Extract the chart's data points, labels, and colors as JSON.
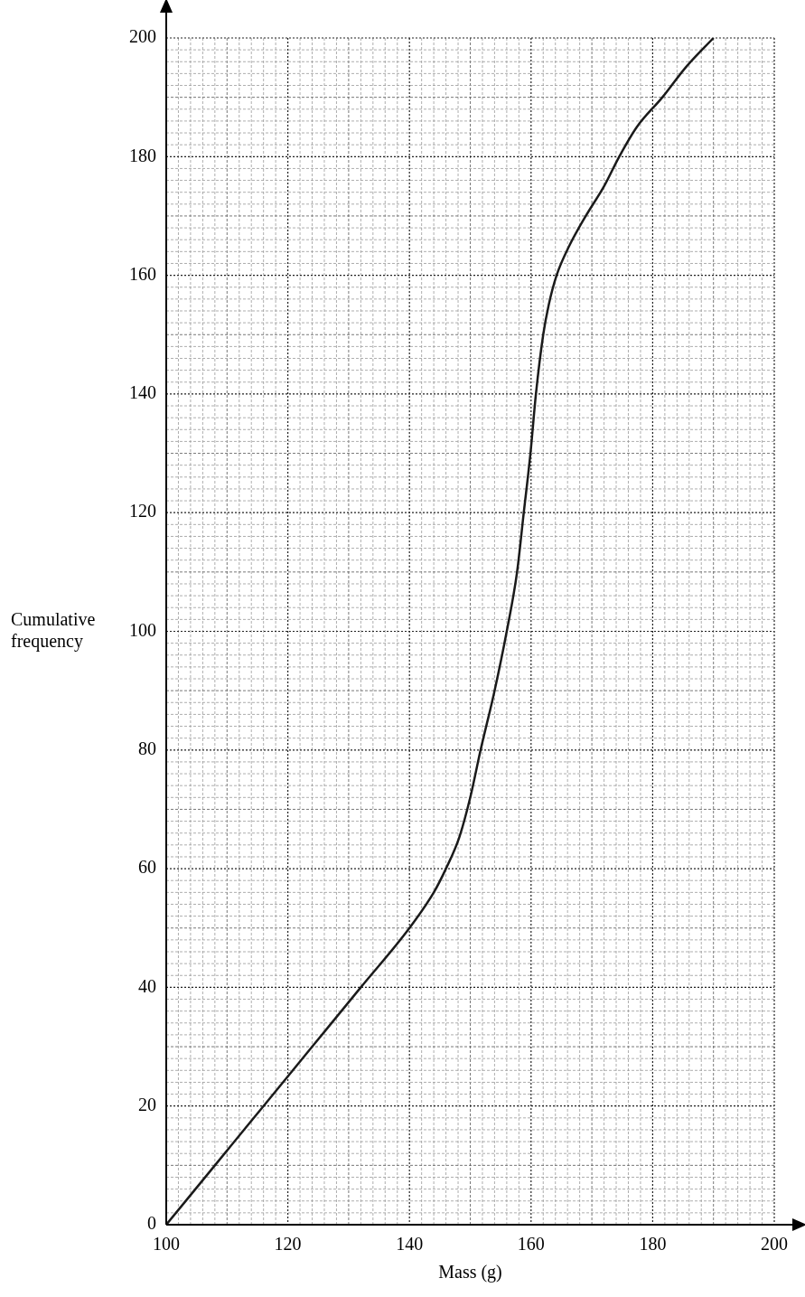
{
  "chart_data": {
    "type": "line",
    "xlabel": "Mass (g)",
    "ylabel": "Cumulative\nfrequency",
    "color": "#1a1a1a",
    "x": [
      100,
      108,
      116,
      124,
      132,
      140,
      144,
      146,
      148.2,
      150,
      151.7,
      154,
      156,
      157.7,
      158.8,
      159.9,
      160.8,
      162,
      162.9,
      164.2,
      166.3,
      169,
      172,
      174.5,
      177.4,
      181.6,
      185.4,
      190
    ],
    "values": [
      0,
      10,
      20,
      30,
      40,
      50,
      56,
      60,
      65.3,
      72,
      80,
      90,
      100,
      110,
      120,
      130,
      140,
      150,
      155,
      160,
      165,
      170,
      175,
      180,
      185,
      190,
      195,
      200
    ],
    "xlim": [
      100,
      200
    ],
    "xticks": [
      100,
      120,
      140,
      160,
      180,
      200
    ],
    "ylim": [
      0,
      200
    ],
    "yticks": [
      0,
      20,
      40,
      60,
      80,
      100,
      120,
      140,
      160,
      180,
      200
    ],
    "grid": true,
    "marker": "none",
    "line_style": "solid",
    "legend": false
  }
}
